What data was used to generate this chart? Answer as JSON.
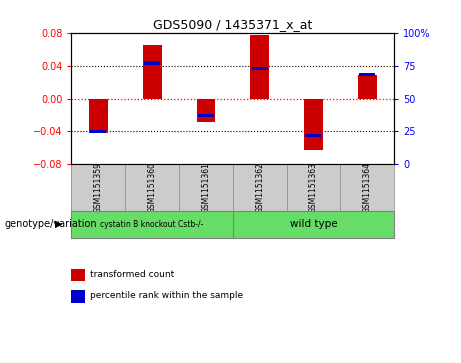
{
  "title": "GDS5090 / 1435371_x_at",
  "samples": [
    "GSM1151359",
    "GSM1151360",
    "GSM1151361",
    "GSM1151362",
    "GSM1151363",
    "GSM1151364"
  ],
  "transformed_count": [
    -0.042,
    0.065,
    -0.028,
    0.077,
    -0.062,
    0.028
  ],
  "percentile_rank": [
    25,
    77,
    37,
    73,
    22,
    68
  ],
  "group1_label": "cystatin B knockout Cstb-/-",
  "group2_label": "wild type",
  "group_color": "#66DD66",
  "ylim": [
    -0.08,
    0.08
  ],
  "yticks_left": [
    -0.08,
    -0.04,
    0,
    0.04,
    0.08
  ],
  "yticks_right_labels": [
    "0",
    "25",
    "50",
    "75",
    "100%"
  ],
  "bar_color": "#CC0000",
  "percentile_color": "#0000CC",
  "bar_width": 0.35,
  "bg_plot": "#FFFFFF",
  "bg_label": "#CCCCCC",
  "genotype_label": "genotype/variation",
  "legend_items": [
    "transformed count",
    "percentile rank within the sample"
  ]
}
